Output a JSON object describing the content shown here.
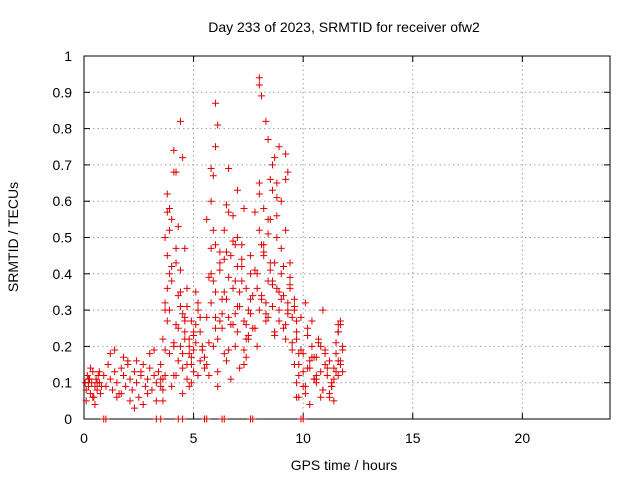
{
  "chart_data": {
    "type": "scatter",
    "title": "Day 233 of 2023, SRMTID for receiver ofw2",
    "xlabel": "GPS time / hours",
    "ylabel": "SRMTID / TECUs",
    "xlim": [
      0,
      24
    ],
    "ylim": [
      0,
      1
    ],
    "xticks": [
      0,
      5,
      10,
      15,
      20
    ],
    "xtick_labels": [
      "0",
      "5",
      "10",
      "15",
      "20"
    ],
    "yticks": [
      0,
      0.1,
      0.2,
      0.3,
      0.4,
      0.5,
      0.6,
      0.7,
      0.8,
      0.9,
      1
    ],
    "ytick_labels": [
      "0",
      "0.1",
      "0.2",
      "0.3",
      "0.4",
      "0.5",
      "0.6",
      "0.7",
      "0.8",
      "0.9",
      "1"
    ],
    "grid": true,
    "marker": "plus",
    "series": [
      {
        "name": "SRMTID",
        "color": "#e00000",
        "x": [
          0.05,
          0.1,
          0.15,
          0.2,
          0.25,
          0.3,
          0.35,
          0.4,
          0.45,
          0.5,
          0.55,
          0.6,
          0.65,
          0.7,
          0.75,
          0.8,
          0.1,
          0.3,
          0.5,
          0.7,
          0.2,
          0.4,
          0.6,
          0.9,
          1.0,
          1.1,
          1.2,
          1.3,
          1.4,
          1.5,
          1.6,
          1.7,
          1.8,
          1.9,
          2.0,
          2.1,
          2.2,
          2.3,
          2.4,
          2.5,
          2.6,
          2.7,
          2.8,
          2.9,
          3.0,
          3.1,
          3.2,
          3.3,
          3.4,
          3.5,
          3.6,
          3.7,
          1.2,
          1.5,
          1.8,
          2.1,
          2.4,
          2.7,
          3.0,
          3.3,
          1.4,
          1.7,
          2.0,
          2.3,
          2.6,
          2.9,
          3.2,
          3.5,
          3.5,
          3.6,
          3.7,
          3.8,
          3.9,
          4.0,
          4.1,
          4.2,
          4.3,
          4.4,
          4.5,
          4.6,
          4.7,
          4.8,
          4.9,
          5.0,
          5.1,
          5.2,
          5.3,
          5.4,
          5.5,
          3.7,
          3.8,
          3.9,
          4.0,
          4.1,
          4.2,
          4.3,
          4.4,
          4.5,
          4.6,
          4.7,
          4.8,
          4.9,
          5.0,
          5.1,
          5.2,
          5.3,
          3.6,
          3.7,
          3.8,
          3.9,
          4.0,
          4.1,
          4.2,
          4.3,
          4.4,
          4.5,
          4.6,
          4.7,
          4.8,
          4.9,
          5.0,
          5.1,
          5.2,
          5.3,
          5.4,
          5.5,
          3.6,
          3.7,
          3.8,
          3.9,
          4.0,
          4.1,
          4.2,
          4.3,
          4.4,
          4.5,
          4.6,
          4.7,
          4.8,
          4.9,
          5.0,
          4.1,
          4.5,
          4.2,
          4.4,
          3.8,
          4.6,
          3.9,
          5.6,
          5.7,
          5.8,
          5.9,
          6.0,
          6.1,
          6.2,
          6.3,
          6.4,
          6.5,
          6.6,
          6.7,
          6.8,
          6.9,
          7.0,
          7.1,
          7.2,
          7.3,
          7.4,
          7.5,
          7.6,
          7.7,
          5.6,
          5.8,
          6.0,
          6.2,
          6.4,
          6.6,
          6.8,
          7.0,
          7.2,
          7.4,
          7.6,
          5.7,
          5.9,
          6.1,
          6.3,
          6.5,
          6.7,
          6.9,
          7.1,
          7.3,
          7.5,
          7.7,
          5.8,
          6.0,
          6.2,
          6.4,
          6.6,
          6.8,
          7.0,
          7.2,
          7.4,
          7.6,
          5.7,
          5.9,
          6.1,
          6.3,
          6.5,
          6.7,
          6.9,
          7.1,
          7.3,
          7.5,
          5.6,
          5.8,
          6.0,
          6.2,
          6.4,
          6.6,
          6.8,
          7.0,
          7.2,
          7.4,
          7.6,
          6.0,
          6.1,
          6.0,
          5.8,
          5.9,
          6.5,
          6.6,
          6.9,
          7.3,
          7.0,
          7.8,
          7.9,
          8.0,
          8.1,
          8.2,
          8.3,
          8.4,
          8.5,
          8.6,
          8.7,
          8.8,
          8.9,
          9.0,
          9.1,
          9.2,
          9.3,
          9.4,
          9.5,
          9.6,
          9.7,
          9.8,
          7.8,
          8.0,
          8.2,
          8.4,
          8.6,
          8.8,
          9.0,
          9.2,
          9.4,
          9.6,
          9.8,
          7.9,
          8.1,
          8.3,
          8.5,
          8.7,
          8.9,
          9.1,
          9.3,
          9.5,
          9.7,
          7.8,
          8.0,
          8.2,
          8.4,
          8.6,
          8.8,
          9.0,
          9.2,
          9.4,
          9.6,
          7.9,
          8.1,
          8.3,
          8.5,
          8.7,
          8.9,
          9.1,
          9.3,
          9.5,
          8.0,
          8.2,
          8.4,
          8.6,
          8.8,
          9.0,
          9.2,
          9.4,
          8.0,
          8.0,
          8.1,
          8.3,
          8.4,
          8.6,
          8.8,
          8.9,
          9.2,
          9.3,
          8.5,
          8.7,
          9.6,
          9.7,
          9.8,
          9.9,
          10.0,
          10.1,
          10.2,
          10.3,
          10.4,
          10.5,
          10.6,
          10.7,
          10.8,
          10.9,
          11.0,
          11.1,
          11.2,
          11.3,
          11.4,
          11.5,
          11.6,
          11.7,
          11.8,
          9.7,
          9.9,
          10.1,
          10.3,
          10.5,
          10.7,
          10.9,
          11.1,
          11.3,
          11.5,
          11.7,
          9.8,
          10.0,
          10.2,
          10.4,
          10.6,
          10.8,
          11.0,
          11.2,
          11.4,
          11.6,
          10.0,
          10.4,
          10.8,
          11.2,
          11.6,
          10.2,
          10.6,
          11.0,
          11.4,
          11.8,
          10.1,
          10.5,
          10.9,
          11.3,
          11.7,
          11.5,
          11.6,
          11.7,
          11.8,
          11.6,
          9.7,
          10.3,
          10.6,
          0.9,
          1.0,
          3.3,
          3.5,
          4.3,
          4.5,
          5.5,
          5.6,
          6.3,
          6.4,
          7.6,
          7.7,
          9.9,
          10.0
        ],
        "y": [
          0.1,
          0.08,
          0.12,
          0.09,
          0.11,
          0.07,
          0.1,
          0.13,
          0.06,
          0.09,
          0.11,
          0.08,
          0.12,
          0.1,
          0.07,
          0.09,
          0.05,
          0.14,
          0.04,
          0.13,
          0.11,
          0.06,
          0.1,
          0.12,
          0.09,
          0.15,
          0.11,
          0.08,
          0.13,
          0.1,
          0.07,
          0.14,
          0.12,
          0.09,
          0.16,
          0.11,
          0.08,
          0.13,
          0.1,
          0.06,
          0.12,
          0.15,
          0.09,
          0.11,
          0.14,
          0.08,
          0.12,
          0.1,
          0.13,
          0.09,
          0.11,
          0.12,
          0.18,
          0.06,
          0.17,
          0.05,
          0.16,
          0.04,
          0.18,
          0.05,
          0.19,
          0.07,
          0.15,
          0.03,
          0.13,
          0.07,
          0.19,
          0.11,
          0.15,
          0.22,
          0.3,
          0.45,
          0.52,
          0.38,
          0.2,
          0.12,
          0.25,
          0.35,
          0.18,
          0.28,
          0.15,
          0.22,
          0.1,
          0.19,
          0.26,
          0.32,
          0.24,
          0.2,
          0.17,
          0.5,
          0.62,
          0.4,
          0.55,
          0.68,
          0.47,
          0.34,
          0.41,
          0.29,
          0.22,
          0.36,
          0.18,
          0.27,
          0.13,
          0.21,
          0.3,
          0.16,
          0.08,
          0.32,
          0.27,
          0.18,
          0.42,
          0.12,
          0.26,
          0.53,
          0.2,
          0.14,
          0.24,
          0.31,
          0.09,
          0.17,
          0.23,
          0.35,
          0.12,
          0.28,
          0.19,
          0.14,
          0.05,
          0.19,
          0.36,
          0.58,
          0.09,
          0.21,
          0.43,
          0.16,
          0.31,
          0.07,
          0.27,
          0.11,
          0.2,
          0.15,
          0.24,
          0.74,
          0.72,
          0.68,
          0.82,
          0.57,
          0.47,
          0.3,
          0.28,
          0.39,
          0.47,
          0.52,
          0.35,
          0.22,
          0.41,
          0.29,
          0.18,
          0.33,
          0.57,
          0.45,
          0.26,
          0.38,
          0.5,
          0.31,
          0.44,
          0.27,
          0.36,
          0.23,
          0.4,
          0.34,
          0.15,
          0.32,
          0.48,
          0.27,
          0.44,
          0.19,
          0.36,
          0.24,
          0.42,
          0.17,
          0.29,
          0.21,
          0.38,
          0.13,
          0.33,
          0.46,
          0.26,
          0.2,
          0.35,
          0.15,
          0.3,
          0.25,
          0.4,
          0.25,
          0.43,
          0.35,
          0.28,
          0.49,
          0.31,
          0.38,
          0.22,
          0.33,
          0.12,
          0.2,
          0.09,
          0.25,
          0.16,
          0.11,
          0.29,
          0.14,
          0.19,
          0.22,
          0.55,
          0.6,
          0.28,
          0.46,
          0.52,
          0.39,
          0.56,
          0.42,
          0.48,
          0.26,
          0.45,
          0.87,
          0.81,
          0.75,
          0.69,
          0.67,
          0.59,
          0.69,
          0.48,
          0.58,
          0.63,
          0.25,
          0.4,
          0.52,
          0.33,
          0.46,
          0.29,
          0.38,
          0.55,
          0.31,
          0.43,
          0.36,
          0.27,
          0.4,
          0.34,
          0.22,
          0.3,
          0.37,
          0.28,
          0.33,
          0.24,
          0.18,
          0.41,
          0.3,
          0.45,
          0.28,
          0.37,
          0.5,
          0.33,
          0.26,
          0.39,
          0.31,
          0.15,
          0.36,
          0.48,
          0.32,
          0.43,
          0.24,
          0.35,
          0.42,
          0.29,
          0.21,
          0.27,
          0.57,
          0.62,
          0.48,
          0.55,
          0.38,
          0.61,
          0.47,
          0.52,
          0.36,
          0.3,
          0.2,
          0.34,
          0.27,
          0.41,
          0.23,
          0.3,
          0.25,
          0.32,
          0.19,
          0.65,
          0.58,
          0.51,
          0.63,
          0.56,
          0.6,
          0.66,
          0.43,
          0.94,
          0.92,
          0.89,
          0.82,
          0.77,
          0.7,
          0.65,
          0.75,
          0.73,
          0.68,
          0.66,
          0.72,
          0.15,
          0.22,
          0.12,
          0.28,
          0.18,
          0.09,
          0.25,
          0.14,
          0.2,
          0.11,
          0.17,
          0.22,
          0.13,
          0.08,
          0.19,
          0.12,
          0.16,
          0.1,
          0.14,
          0.18,
          0.12,
          0.15,
          0.13,
          0.1,
          0.19,
          0.07,
          0.16,
          0.11,
          0.21,
          0.08,
          0.14,
          0.09,
          0.13,
          0.16,
          0.06,
          0.13,
          0.23,
          0.17,
          0.12,
          0.06,
          0.15,
          0.07,
          0.11,
          0.26,
          0.09,
          0.27,
          0.2,
          0.06,
          0.24,
          0.14,
          0.1,
          0.18,
          0.05,
          0.19,
          0.32,
          0.17,
          0.3,
          0.09,
          0.26,
          0.21,
          0.24,
          0.27,
          0.2,
          0.16,
          0.06,
          0.04,
          0.11,
          0.0,
          0.0,
          0.0,
          0.0,
          0.0,
          0.0,
          0.0,
          0.0,
          0.0,
          0.0,
          0.0,
          0.0,
          0.0,
          0.0
        ]
      }
    ]
  }
}
